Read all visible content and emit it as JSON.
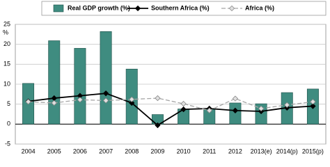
{
  "chart_data": {
    "type": "bar-line",
    "ylabel": "%",
    "categories": [
      "2004",
      "2005",
      "2006",
      "2007",
      "2008",
      "2009",
      "2010",
      "2011",
      "2012",
      "2013(e)",
      "2014(p)",
      "2015(p)"
    ],
    "series": [
      {
        "name": "Real GDP growth (%)",
        "type": "bar",
        "color": "#3f8c80",
        "values": [
          10.2,
          20.9,
          19.0,
          23.2,
          13.8,
          2.4,
          3.8,
          3.9,
          5.3,
          5.1,
          7.9,
          8.8
        ]
      },
      {
        "name": "Southern Africa (%)",
        "type": "line",
        "color": "#000000",
        "values": [
          5.7,
          6.5,
          7.1,
          7.7,
          5.3,
          -0.3,
          3.7,
          3.9,
          3.4,
          3.2,
          4.1,
          4.5
        ]
      },
      {
        "name": "Africa (%)",
        "type": "line",
        "dashed": true,
        "color": "#a6a6a6",
        "values": [
          5.6,
          5.3,
          6.1,
          5.9,
          6.2,
          6.5,
          5.1,
          3.4,
          6.4,
          3.9,
          4.8,
          5.6
        ]
      }
    ],
    "ylim": [
      -5,
      25
    ],
    "yticks": [
      -5,
      0,
      5,
      10,
      15,
      20,
      25
    ],
    "grid": true
  }
}
